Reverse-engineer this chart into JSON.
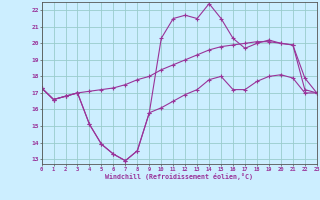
{
  "xlabel": "Windchill (Refroidissement éolien,°C)",
  "bg_color": "#cceeff",
  "line_color": "#993399",
  "grid_color": "#99cccc",
  "x_values": [
    0,
    1,
    2,
    3,
    4,
    5,
    6,
    7,
    8,
    9,
    10,
    11,
    12,
    13,
    14,
    15,
    16,
    17,
    18,
    19,
    20,
    21,
    22,
    23
  ],
  "line1": [
    17.3,
    16.6,
    16.8,
    17.0,
    17.1,
    17.2,
    17.3,
    17.5,
    17.8,
    18.0,
    18.4,
    18.7,
    19.0,
    19.3,
    19.6,
    19.8,
    19.9,
    20.0,
    20.1,
    20.1,
    20.0,
    19.9,
    17.2,
    17.0
  ],
  "line2": [
    17.3,
    16.6,
    16.8,
    17.0,
    15.1,
    13.9,
    13.3,
    12.9,
    13.5,
    15.8,
    20.3,
    21.5,
    21.7,
    21.5,
    22.4,
    21.5,
    20.3,
    19.7,
    20.0,
    20.2,
    20.0,
    19.9,
    17.9,
    17.0
  ],
  "line3": [
    17.3,
    16.6,
    16.8,
    17.0,
    15.1,
    13.9,
    13.3,
    12.9,
    13.5,
    15.8,
    16.1,
    16.5,
    16.9,
    17.2,
    17.8,
    18.0,
    17.2,
    17.2,
    17.7,
    18.0,
    18.1,
    17.9,
    17.0,
    17.0
  ],
  "xlim": [
    0,
    23
  ],
  "ylim": [
    12.7,
    22.5
  ],
  "xticks": [
    0,
    1,
    2,
    3,
    4,
    5,
    6,
    7,
    8,
    9,
    10,
    11,
    12,
    13,
    14,
    15,
    16,
    17,
    18,
    19,
    20,
    21,
    22,
    23
  ],
  "yticks": [
    13,
    14,
    15,
    16,
    17,
    18,
    19,
    20,
    21,
    22
  ]
}
